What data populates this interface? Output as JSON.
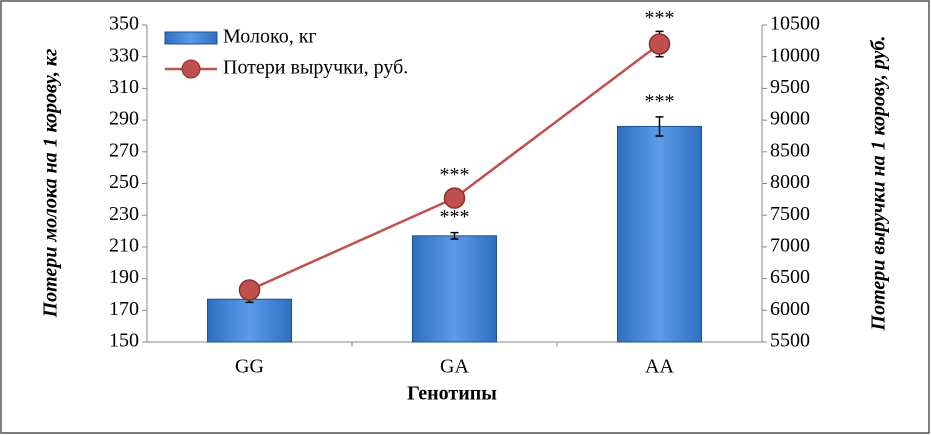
{
  "chart_data": {
    "type": "bar-line",
    "x_label": "Генотипы",
    "y_label": "Потери молока на 1 корову, кг",
    "y2_label": "Потери выручки на 1 корову, руб.",
    "categories": [
      "GG",
      "GA",
      "AA"
    ],
    "series": [
      {
        "name": "Молоко, кг",
        "type": "bar",
        "color": "#2e6fc0",
        "values": [
          177,
          217,
          286
        ],
        "errors": [
          2,
          2,
          6
        ],
        "significance": [
          null,
          "***",
          "***"
        ]
      },
      {
        "name": "Потери выручки, руб.",
        "type": "line",
        "axis": "y2",
        "color": "#c0504d",
        "values": [
          6320,
          7770,
          10200
        ],
        "errors": [
          60,
          150,
          200
        ],
        "significance": [
          null,
          "***",
          "***"
        ]
      }
    ],
    "ylim": [
      150,
      350
    ],
    "yticks": [
      150,
      170,
      190,
      210,
      230,
      250,
      270,
      290,
      310,
      330,
      350
    ],
    "y2lim": [
      5500,
      10500
    ],
    "y2ticks": [
      5500,
      6000,
      6500,
      7000,
      7500,
      8000,
      8500,
      9000,
      9500,
      10000,
      10500
    ],
    "legend": "top-left"
  }
}
